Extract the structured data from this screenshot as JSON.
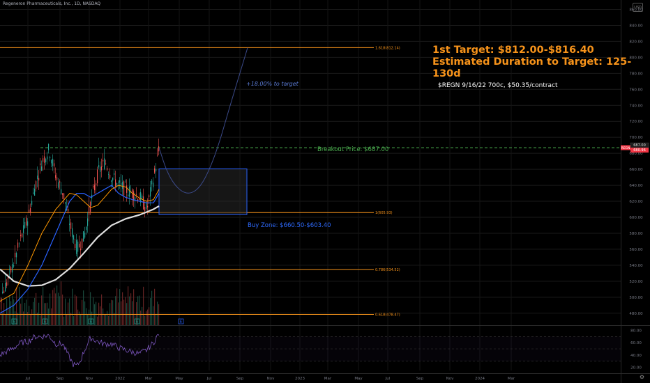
{
  "symbol_line": "Regeneron Pharmaceuticals, Inc., 1D, NASDAQ",
  "annotations": {
    "target1": "1st Target: $812.00-$816.40",
    "duration": "Estimated Duration to Target: 125-130d",
    "contract": "$REGN 9/16/22 700c, $50.35/contract",
    "pct_to_target": "+18.00% to target",
    "breakout": "Breakout Price: $687.00",
    "buy_zone": "Buy Zone: $660.50-$603.40"
  },
  "colors": {
    "background": "#000000",
    "fib": "#f7931a",
    "breakout": "#4caf50",
    "buy_zone": "#2962ff",
    "ma_white": "#e0e0e0",
    "ma_orange": "#ff9800",
    "ma_blue": "#2962ff",
    "rsi": "#7e57c2",
    "text_axis": "#787b86"
  },
  "badges": {
    "symbol": "REGN",
    "price": "687.00",
    "last": "680.96",
    "top_right": "USD"
  },
  "icons": {
    "gear": "gear-icon",
    "marker": "E"
  },
  "chart_data": [
    {
      "type": "candlestick",
      "title": "Regeneron Pharmaceuticals, Inc., 1D, NASDAQ",
      "ylim": [
        465,
        870
      ],
      "y_ticks": [
        860,
        840,
        820,
        800,
        780,
        760,
        740,
        720,
        700,
        680,
        660,
        640,
        620,
        600,
        580,
        560,
        540,
        520,
        500,
        480
      ],
      "x_tick_labels": [
        "Jul",
        "Sep",
        "Nov",
        "2022",
        "Mar",
        "May",
        "Jul",
        "Sep",
        "Nov",
        "2023",
        "Mar",
        "May",
        "Jul",
        "Sep",
        "Nov",
        "2024",
        "Mar"
      ],
      "fib_levels": [
        {
          "label": "1.618(812.14)",
          "value": 812.14
        },
        {
          "label": "1(605.93)",
          "value": 605.93
        },
        {
          "label": "0.786(534.52)",
          "value": 534.52
        },
        {
          "label": "0.618(478.47)",
          "value": 478.47
        }
      ],
      "breakout_price": 687.0,
      "buy_zone": {
        "top": 660.5,
        "bottom": 603.4
      },
      "price_series": {
        "name": "price",
        "x": [
          0,
          10,
          20,
          30,
          40,
          50,
          60,
          70,
          80,
          90,
          100,
          110,
          120,
          130,
          140,
          150,
          160,
          170,
          180,
          190,
          200,
          210,
          220,
          228
        ],
        "values": [
          500,
          520,
          545,
          575,
          600,
          640,
          670,
          685,
          650,
          630,
          590,
          560,
          575,
          620,
          655,
          670,
          650,
          640,
          635,
          630,
          625,
          610,
          650,
          687
        ]
      },
      "ma_series": [
        {
          "name": "ma_white",
          "x": [
            0,
            20,
            40,
            60,
            80,
            100,
            120,
            140,
            160,
            180,
            200,
            220,
            228
          ],
          "values": [
            535,
            520,
            514,
            515,
            522,
            536,
            555,
            575,
            590,
            598,
            603,
            610,
            614
          ]
        },
        {
          "name": "ma_blue",
          "x": [
            0,
            20,
            40,
            60,
            80,
            100,
            110,
            120,
            130,
            140,
            150,
            160,
            170,
            180,
            190,
            200,
            210,
            220,
            228
          ],
          "values": [
            480,
            490,
            510,
            540,
            580,
            620,
            630,
            630,
            625,
            630,
            635,
            640,
            630,
            625,
            622,
            620,
            618,
            618,
            630
          ]
        },
        {
          "name": "ma_orange",
          "x": [
            0,
            20,
            40,
            60,
            80,
            100,
            110,
            120,
            130,
            140,
            150,
            160,
            170,
            180,
            190,
            200,
            210,
            220,
            228
          ],
          "values": [
            495,
            505,
            540,
            580,
            610,
            630,
            628,
            620,
            612,
            615,
            625,
            635,
            640,
            638,
            630,
            624,
            620,
            622,
            635
          ]
        }
      ],
      "projection": {
        "x": [
          228,
          240,
          255,
          272,
          290,
          310,
          330,
          355
        ],
        "values": [
          687,
          655,
          635,
          628,
          640,
          680,
          740,
          812
        ]
      }
    },
    {
      "type": "line",
      "name": "rsi",
      "ylim": [
        15,
        85
      ],
      "y_ticks": [
        80,
        60,
        40,
        20
      ],
      "x": [
        0,
        10,
        20,
        30,
        40,
        50,
        60,
        70,
        80,
        90,
        100,
        105,
        110,
        115,
        120,
        130,
        140,
        150,
        160,
        170,
        180,
        190,
        200,
        210,
        220,
        228
      ],
      "values": [
        40,
        46,
        52,
        60,
        62,
        70,
        70,
        72,
        58,
        58,
        35,
        25,
        22,
        30,
        45,
        68,
        62,
        58,
        58,
        52,
        48,
        45,
        42,
        48,
        60,
        75
      ]
    }
  ]
}
